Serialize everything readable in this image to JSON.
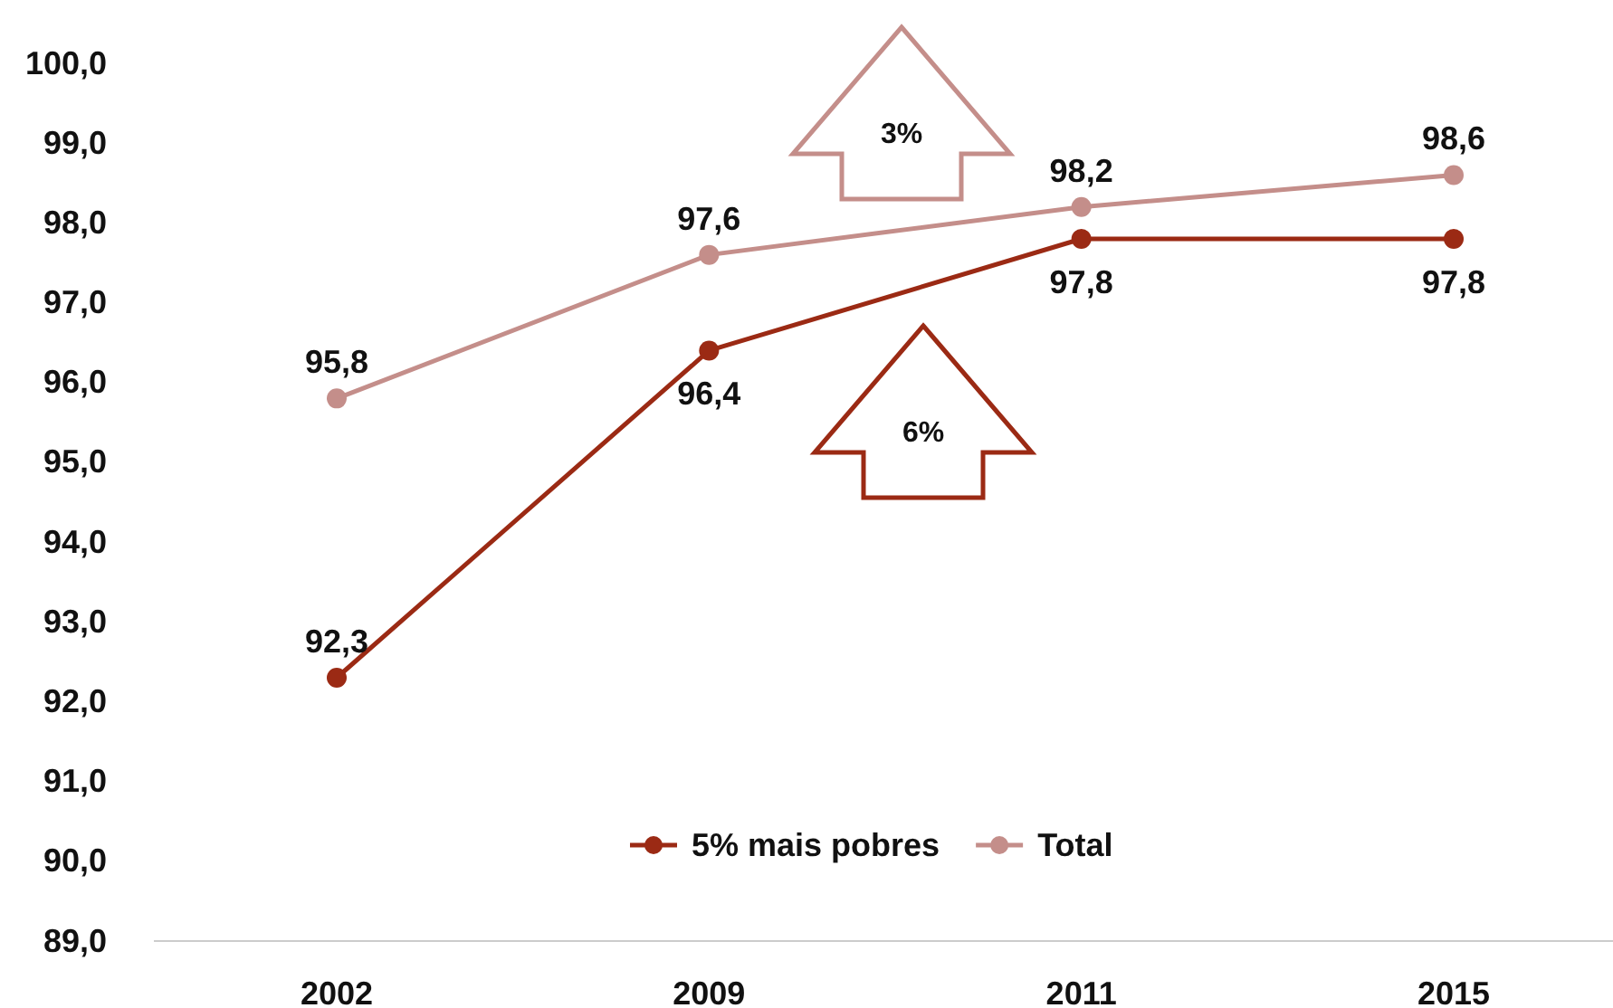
{
  "chart_data": {
    "type": "line",
    "categories": [
      "2002",
      "2009",
      "2011",
      "2015"
    ],
    "series": [
      {
        "name": "5% mais pobres",
        "color": "#9b2a14",
        "values": [
          92.3,
          96.4,
          97.8,
          97.8
        ],
        "value_labels": [
          "92,3",
          "96,4",
          "97,8",
          "97,8"
        ]
      },
      {
        "name": "Total",
        "color": "#c48e8a",
        "values": [
          95.8,
          97.6,
          98.2,
          98.6
        ],
        "value_labels": [
          "95,8",
          "97,6",
          "98,2",
          "98,6"
        ]
      }
    ],
    "ylim": [
      89,
      100
    ],
    "yticks": [
      {
        "value": 89,
        "label": "89,0"
      },
      {
        "value": 90,
        "label": "90,0"
      },
      {
        "value": 91,
        "label": "91,0"
      },
      {
        "value": 92,
        "label": "92,0"
      },
      {
        "value": 93,
        "label": "93,0"
      },
      {
        "value": 94,
        "label": "94,0"
      },
      {
        "value": 95,
        "label": "95,0"
      },
      {
        "value": 96,
        "label": "96,0"
      },
      {
        "value": 97,
        "label": "97,0"
      },
      {
        "value": 98,
        "label": "98,0"
      },
      {
        "value": 99,
        "label": "99,0"
      },
      {
        "value": 100,
        "label": "100,0"
      }
    ],
    "annotations": [
      "3%",
      "6%"
    ],
    "legend": "bottom",
    "marker": "circle",
    "line_style": "solid",
    "grid": false
  }
}
